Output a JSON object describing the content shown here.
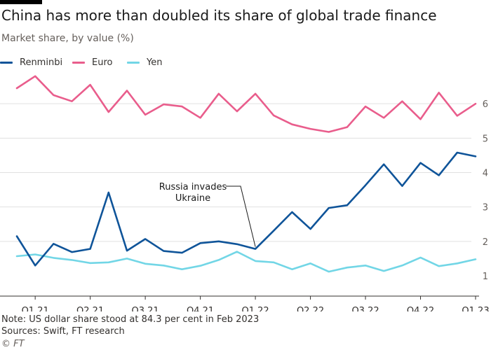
{
  "title": "China has more than doubled its share of global trade finance",
  "subtitle": "Market share, by value (%)",
  "colors": {
    "renminbi": "#0f5499",
    "euro": "#e95d8c",
    "yen": "#72d6e6",
    "grid": "#e0e0e0",
    "axis": "#66605c",
    "bar": "#000000"
  },
  "legend": [
    {
      "label": "Renminbi",
      "color": "#0f5499"
    },
    {
      "label": "Euro",
      "color": "#e95d8c"
    },
    {
      "label": "Yen",
      "color": "#72d6e6"
    }
  ],
  "footer": {
    "note": "Note: US dollar share stood at 84.3 per cent in Feb 2023",
    "sources": "Sources: Swift, FT research",
    "copyright": "© FT"
  },
  "chart_data": {
    "type": "line",
    "title": "China has more than doubled its share of global trade finance",
    "subtitle": "Market share, by value (%)",
    "x": [
      "Jan 2021",
      "Feb 2021",
      "Mar 2021",
      "Apr 2021",
      "May 2021",
      "Jun 2021",
      "Jul 2021",
      "Aug 2021",
      "Sep 2021",
      "Oct 2021",
      "Nov 2021",
      "Dec 2021",
      "Jan 2022",
      "Feb 2022",
      "Mar 2022",
      "Apr 2022",
      "May 2022",
      "Jun 2022",
      "Jul 2022",
      "Aug 2022",
      "Sep 2022",
      "Oct 2022",
      "Nov 2022",
      "Dec 2022",
      "Jan 2023",
      "Feb 2023"
    ],
    "x_ticks": [
      "Q1 21",
      "Q2 21",
      "Q3 21",
      "Q4 21",
      "Q1 22",
      "Q2 22",
      "Q3 22",
      "Q4 22",
      "Q1 23"
    ],
    "x_tick_positions": [
      "Feb 2021",
      "May 2021",
      "Aug 2021",
      "Nov 2021",
      "Feb 2022",
      "May 2022",
      "Aug 2022",
      "Nov 2022",
      "Feb 2023"
    ],
    "y_ticks": [
      1,
      2,
      3,
      4,
      5,
      6
    ],
    "ylim": [
      1,
      7
    ],
    "grid": true,
    "legend_position": "top-left",
    "series": [
      {
        "name": "Renminbi",
        "color": "#0f5499",
        "values": [
          2.15,
          1.3,
          1.93,
          1.69,
          1.78,
          3.42,
          1.73,
          2.07,
          1.72,
          1.67,
          1.95,
          2.0,
          1.92,
          1.78,
          2.31,
          2.85,
          2.36,
          2.97,
          3.05,
          3.63,
          4.24,
          3.61,
          4.28,
          3.92,
          4.58,
          4.47
        ]
      },
      {
        "name": "Euro",
        "color": "#e95d8c",
        "values": [
          6.45,
          6.8,
          6.25,
          6.07,
          6.55,
          5.76,
          6.38,
          5.68,
          5.98,
          5.92,
          5.59,
          6.29,
          5.78,
          6.29,
          5.66,
          5.4,
          5.27,
          5.18,
          5.32,
          5.92,
          5.59,
          6.07,
          5.55,
          6.32,
          5.65,
          6.0
        ]
      },
      {
        "name": "Yen",
        "color": "#72d6e6",
        "values": [
          1.57,
          1.62,
          1.52,
          1.46,
          1.37,
          1.39,
          1.5,
          1.35,
          1.3,
          1.19,
          1.29,
          1.46,
          1.7,
          1.43,
          1.39,
          1.19,
          1.36,
          1.12,
          1.24,
          1.3,
          1.14,
          1.3,
          1.53,
          1.28,
          1.36,
          1.48
        ]
      }
    ],
    "annotations": [
      {
        "text_lines": [
          "Russia invades",
          "Ukraine"
        ],
        "x": "Feb 2022",
        "series": "Renminbi"
      }
    ]
  }
}
